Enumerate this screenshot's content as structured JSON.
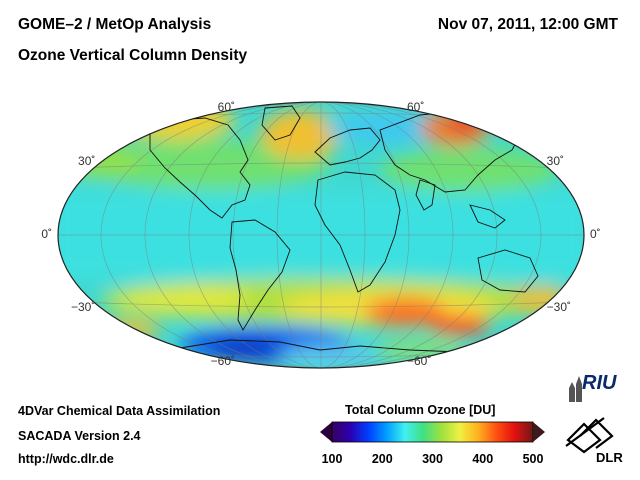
{
  "header": {
    "title": "GOME–2 / MetOp Analysis",
    "subtitle": "Ozone Vertical Column Density",
    "datetime": "Nov 07, 2011, 12:00 GMT"
  },
  "map": {
    "projection": "Hammer-Aitoff (world)",
    "lat_labels": [
      {
        "text": "60˚",
        "lat": 60
      },
      {
        "text": "30˚",
        "lat": 30
      },
      {
        "text": "0˚",
        "lat": 0
      },
      {
        "text": "−30˚",
        "lat": -30
      },
      {
        "text": "−60˚",
        "lat": -60
      }
    ],
    "features": [
      "coastlines",
      "graticule"
    ]
  },
  "footer": {
    "line1": "4DVar Chemical Data Assimilation",
    "line2": "SACADA Version 2.4",
    "line3": "http://wdc.dlr.de"
  },
  "colorbar": {
    "title": "Total Column Ozone [DU]",
    "ticks": [
      "100",
      "200",
      "300",
      "400",
      "500"
    ],
    "min": 100,
    "max": 500,
    "colors": [
      "#3a0060",
      "#2a00b0",
      "#0040ff",
      "#00a0ff",
      "#40f0f0",
      "#40e080",
      "#a0e040",
      "#f0f040",
      "#ffb020",
      "#ff5010",
      "#e01010",
      "#701818"
    ]
  },
  "logos": {
    "riu": "RIU",
    "dlr": "DLR"
  }
}
